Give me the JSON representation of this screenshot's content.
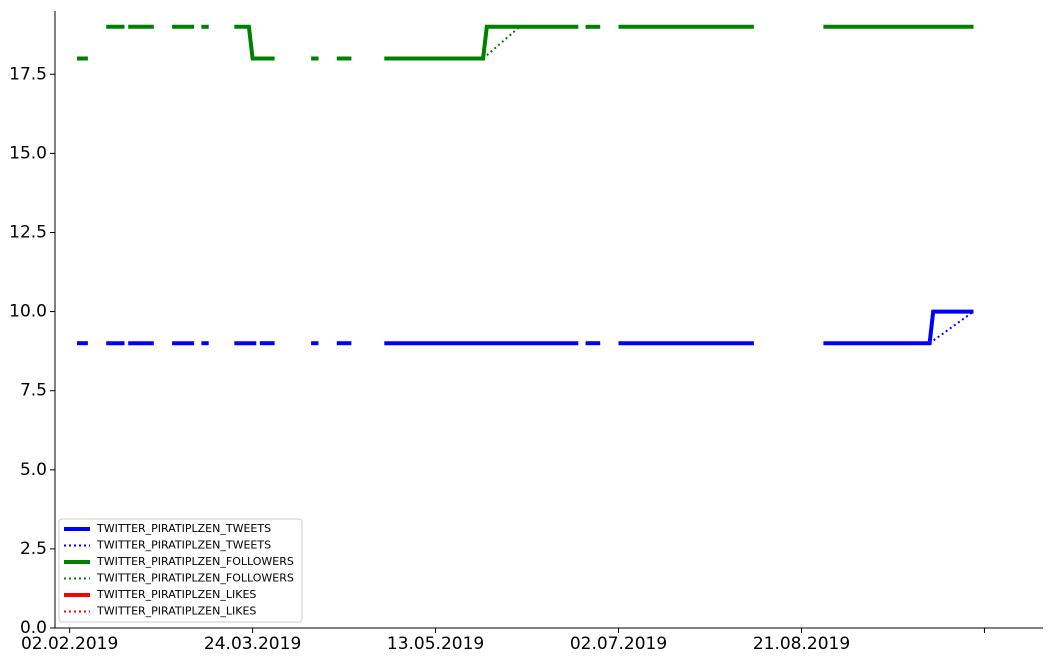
{
  "chart_data": {
    "type": "line",
    "x_type": "date",
    "xlim": [
      "2019-01-29",
      "2019-10-26"
    ],
    "ylim": [
      0,
      19.5
    ],
    "x_ticks": [
      {
        "date": "2019-02-02",
        "label": "02.02.2019"
      },
      {
        "date": "2019-03-24",
        "label": "24.03.2019"
      },
      {
        "date": "2019-05-13",
        "label": "13.05.2019"
      },
      {
        "date": "2019-07-02",
        "label": "02.07.2019"
      },
      {
        "date": "2019-08-21",
        "label": "21.08.2019"
      },
      {
        "date": "2019-10-10",
        "label": ""
      }
    ],
    "y_ticks": [
      {
        "value": 0,
        "label": "0.0"
      },
      {
        "value": 2.5,
        "label": "2.5"
      },
      {
        "value": 5,
        "label": "5.0"
      },
      {
        "value": 7.5,
        "label": "7.5"
      },
      {
        "value": 10,
        "label": "10.0"
      },
      {
        "value": 12.5,
        "label": "12.5"
      },
      {
        "value": 15,
        "label": "15.0"
      },
      {
        "value": 17.5,
        "label": "17.5"
      }
    ],
    "grid": false,
    "legend_position": "bottom-left",
    "series": [
      {
        "name": "TWITTER_PIRATIPLZEN_TWEETS",
        "style": "solid",
        "color": "#0000ff",
        "segments": [
          [
            [
              "2019-02-04",
              9
            ],
            [
              "2019-02-07",
              9
            ]
          ],
          [
            [
              "2019-02-12",
              9
            ],
            [
              "2019-02-17",
              9
            ]
          ],
          [
            [
              "2019-02-18",
              9
            ],
            [
              "2019-02-25",
              9
            ]
          ],
          [
            [
              "2019-03-02",
              9
            ],
            [
              "2019-03-08",
              9
            ]
          ],
          [
            [
              "2019-03-10",
              9
            ],
            [
              "2019-03-12",
              9
            ]
          ],
          [
            [
              "2019-03-19",
              9
            ],
            [
              "2019-03-25",
              9
            ]
          ],
          [
            [
              "2019-03-26",
              9
            ],
            [
              "2019-03-30",
              9
            ]
          ],
          [
            [
              "2019-04-09",
              9
            ],
            [
              "2019-04-11",
              9
            ]
          ],
          [
            [
              "2019-04-16",
              9
            ],
            [
              "2019-04-20",
              9
            ]
          ],
          [
            [
              "2019-04-29",
              9
            ],
            [
              "2019-06-21",
              9
            ]
          ],
          [
            [
              "2019-06-23",
              9
            ],
            [
              "2019-06-27",
              9
            ]
          ],
          [
            [
              "2019-07-02",
              9
            ],
            [
              "2019-08-08",
              9
            ]
          ],
          [
            [
              "2019-08-27",
              9
            ],
            [
              "2019-09-25",
              9
            ],
            [
              "2019-09-26",
              10
            ],
            [
              "2019-10-07",
              10
            ]
          ]
        ]
      },
      {
        "name": "TWITTER_PIRATIPLZEN_TWEETS",
        "style": "dotted",
        "color": "#0000ff",
        "segments": [
          [
            [
              "2019-09-25",
              9
            ],
            [
              "2019-10-07",
              10
            ]
          ]
        ]
      },
      {
        "name": "TWITTER_PIRATIPLZEN_FOLLOWERS",
        "style": "solid",
        "color": "#008000",
        "segments": [
          [
            [
              "2019-02-04",
              18
            ],
            [
              "2019-02-07",
              18
            ]
          ],
          [
            [
              "2019-02-12",
              19
            ],
            [
              "2019-02-17",
              19
            ]
          ],
          [
            [
              "2019-02-18",
              19
            ],
            [
              "2019-02-25",
              19
            ]
          ],
          [
            [
              "2019-03-02",
              19
            ],
            [
              "2019-03-08",
              19
            ]
          ],
          [
            [
              "2019-03-10",
              19
            ],
            [
              "2019-03-12",
              19
            ]
          ],
          [
            [
              "2019-03-19",
              19
            ],
            [
              "2019-03-23",
              19
            ],
            [
              "2019-03-24",
              18
            ],
            [
              "2019-03-30",
              18
            ]
          ],
          [
            [
              "2019-04-09",
              18
            ],
            [
              "2019-04-11",
              18
            ]
          ],
          [
            [
              "2019-04-16",
              18
            ],
            [
              "2019-04-20",
              18
            ]
          ],
          [
            [
              "2019-04-29",
              18
            ],
            [
              "2019-05-26",
              18
            ],
            [
              "2019-05-27",
              19
            ],
            [
              "2019-06-21",
              19
            ]
          ],
          [
            [
              "2019-06-23",
              19
            ],
            [
              "2019-06-27",
              19
            ]
          ],
          [
            [
              "2019-07-02",
              19
            ],
            [
              "2019-08-08",
              19
            ]
          ],
          [
            [
              "2019-08-27",
              19
            ],
            [
              "2019-10-07",
              19
            ]
          ]
        ]
      },
      {
        "name": "TWITTER_PIRATIPLZEN_FOLLOWERS",
        "style": "dotted",
        "color": "#008000",
        "segments": [
          [
            [
              "2019-05-26",
              18
            ],
            [
              "2019-06-05",
              19
            ]
          ]
        ]
      },
      {
        "name": "TWITTER_PIRATIPLZEN_LIKES",
        "style": "solid",
        "color": "#ff0000",
        "segments": []
      },
      {
        "name": "TWITTER_PIRATIPLZEN_LIKES",
        "style": "dotted",
        "color": "#ff0000",
        "segments": []
      }
    ]
  }
}
